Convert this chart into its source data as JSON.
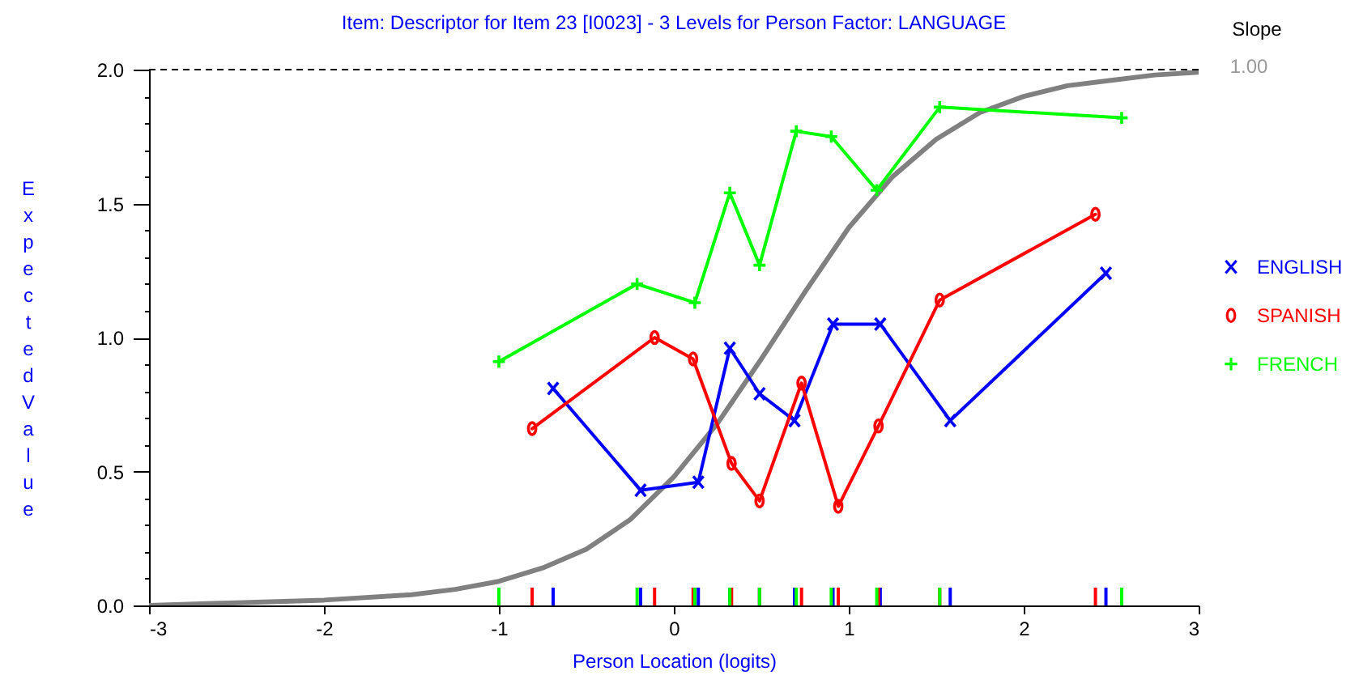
{
  "chart_data": {
    "type": "line",
    "title": "Item: Descriptor for Item 23 [I0023] - 3 Levels for Person Factor: LANGUAGE",
    "xlabel": "Person Location (logits)",
    "ylabel": "Expected Value",
    "annotations": [
      "Slope",
      "1.00"
    ],
    "xlim": [
      -3,
      3
    ],
    "xticks": [
      -3,
      -2,
      -1,
      0,
      1,
      2,
      3
    ],
    "ylim": [
      0,
      2
    ],
    "yticks": [
      {
        "value": 0,
        "label": "0.0"
      },
      {
        "value": 0.1,
        "label": null
      },
      {
        "value": 0.2,
        "label": null
      },
      {
        "value": 0.3,
        "label": null
      },
      {
        "value": 0.4,
        "label": null
      },
      {
        "value": 0.5,
        "label": "0.5"
      },
      {
        "value": 0.6,
        "label": null
      },
      {
        "value": 0.7,
        "label": null
      },
      {
        "value": 0.8,
        "label": null
      },
      {
        "value": 0.9,
        "label": null
      },
      {
        "value": 1,
        "label": "1.0"
      },
      {
        "value": 1.1,
        "label": null
      },
      {
        "value": 1.2,
        "label": null
      },
      {
        "value": 1.3,
        "label": null
      },
      {
        "value": 1.4,
        "label": null
      },
      {
        "value": 1.5,
        "label": "1.5"
      },
      {
        "value": 1.6,
        "label": null
      },
      {
        "value": 1.7,
        "label": null
      },
      {
        "value": 1.8,
        "label": null
      },
      {
        "value": 1.9,
        "label": null
      },
      {
        "value": 2,
        "label": "2.0"
      }
    ],
    "grid": false,
    "legend": "right",
    "line_style": "solid",
    "ref_lines": [
      {
        "axis": "y",
        "value": 2,
        "color": "#000000",
        "line_style": "dashed"
      }
    ],
    "series": [
      {
        "type": "line",
        "color": "#808080",
        "marker": "none",
        "x": [
          -3,
          -2.5,
          -2,
          -1.5,
          -1.25,
          -1,
          -0.75,
          -0.5,
          -0.25,
          0,
          0.25,
          0.5,
          0.75,
          1,
          1.25,
          1.5,
          1.75,
          2,
          2.25,
          2.5,
          2.75,
          3
        ],
        "values": [
          0,
          0.01,
          0.02,
          0.04,
          0.06,
          0.09,
          0.14,
          0.21,
          0.32,
          0.48,
          0.68,
          0.92,
          1.17,
          1.41,
          1.6,
          1.74,
          1.84,
          1.9,
          1.94,
          1.96,
          1.98,
          1.99
        ]
      },
      {
        "name": "ENGLISH",
        "color": "#0000ff",
        "marker": "x",
        "x": [
          -0.69,
          -0.19,
          0.14,
          0.32,
          0.49,
          0.69,
          0.91,
          1.18,
          1.58,
          2.47
        ],
        "values": [
          0.81,
          0.43,
          0.46,
          0.96,
          0.79,
          0.69,
          1.05,
          1.05,
          0.69,
          1.24
        ]
      },
      {
        "name": "SPANISH",
        "color": "#ff0000",
        "marker": "circle",
        "x": [
          -0.81,
          -0.11,
          0.11,
          0.33,
          0.49,
          0.73,
          0.94,
          1.17,
          1.52,
          2.41
        ],
        "values": [
          0.66,
          1.0,
          0.92,
          0.53,
          0.39,
          0.83,
          0.37,
          0.67,
          1.14,
          1.46
        ]
      },
      {
        "name": "FRENCH",
        "color": "#00ff00",
        "marker": "cross",
        "x": [
          -1.0,
          -0.21,
          0.12,
          0.32,
          0.49,
          0.7,
          0.9,
          1.16,
          1.52,
          2.56
        ],
        "values": [
          0.91,
          1.2,
          1.13,
          1.54,
          1.27,
          1.77,
          1.75,
          1.55,
          1.86,
          1.82
        ]
      }
    ]
  }
}
